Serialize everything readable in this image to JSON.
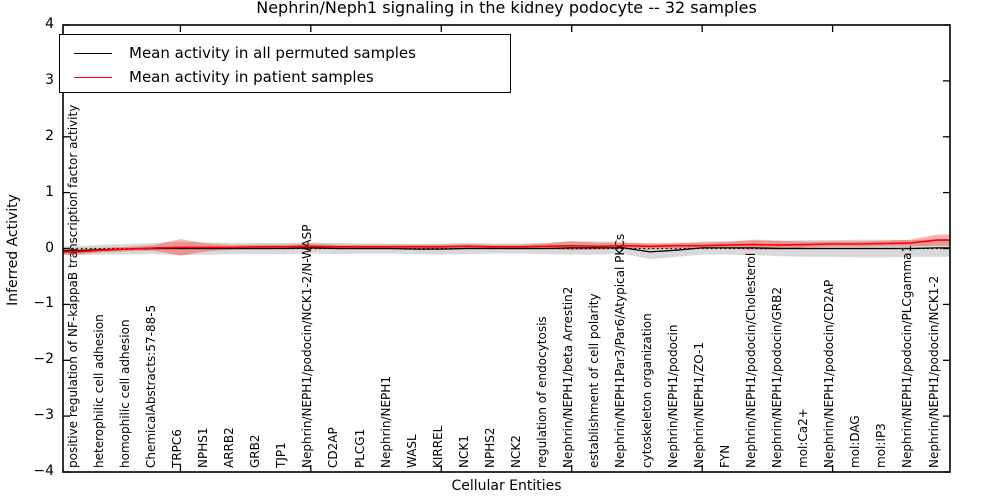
{
  "chart_data": {
    "type": "line",
    "title": "Nephrin/Neph1 signaling in the kidney podocyte -- 32 samples",
    "xlabel": "Cellular Entities",
    "ylabel": "Inferred Activity",
    "ylim": [
      -4,
      4
    ],
    "grid": false,
    "legend_position": "upper left",
    "zero_reference_line": {
      "y": 0,
      "style": "dotted",
      "color": "#000000"
    },
    "yticks": {
      "values": [
        4,
        3,
        2,
        1,
        0,
        -1,
        -2,
        -3,
        -4
      ],
      "labels": [
        "4",
        "3",
        "2",
        "1",
        "0",
        "−1",
        "−2",
        "−3",
        "−4"
      ]
    },
    "x_major_tick_indices": [
      4,
      9,
      14,
      19,
      24,
      29
    ],
    "categories": [
      "positive regulation of NF-kappaB transcription factor activity",
      "heterophilic cell adhesion",
      "homophilic cell adhesion",
      "ChemicalAbstracts:57-88-5",
      "TRPC6",
      "NPHS1",
      "ARRB2",
      "GRB2",
      "TJP1",
      "Nephrin/NEPH1/podocin/NCK1-2/N-WASP",
      "CD2AP",
      "PLCG1",
      "Nephrin/NEPH1",
      "WASL",
      "KIRREL",
      "NCK1",
      "NPHS2",
      "NCK2",
      "regulation of endocytosis",
      "Nephrin/NEPH1/beta Arrestin2",
      "establishment of cell polarity",
      "Nephrin/NEPH1Par3/Par6/Atypical PKCs",
      "cytoskeleton organization",
      "Nephrin/NEPH1/podocin",
      "Nephrin/NEPH1/ZO-1",
      "FYN",
      "Nephrin/NEPH1/podocin/Cholesterol",
      "Nephrin/NEPH1/podocin/GRB2",
      "mol:Ca2+",
      "Nephrin/NEPH1/podocin/CD2AP",
      "mol:DAG",
      "mol:IP3",
      "Nephrin/NEPH1/podocin/PLCgamma1",
      "Nephrin/NEPH1/podocin/NCK1-2"
    ],
    "series": [
      {
        "name": "Mean activity in all permuted samples",
        "color": "#000000",
        "line_width": 1.3,
        "band_color": "rgba(0,0,0,0.15)",
        "band_name": "permuted-band",
        "values": [
          -0.04,
          -0.02,
          -0.01,
          0,
          0,
          0,
          0,
          0,
          0,
          0.01,
          0,
          0,
          0,
          -0.01,
          -0.01,
          0,
          0,
          0,
          0,
          0.01,
          0.01,
          0.01,
          -0.06,
          -0.03,
          0.01,
          0.01,
          0.01,
          0,
          0,
          0,
          0,
          0,
          0,
          0.01
        ],
        "band_halfwidth": [
          0.08,
          0.09,
          0.09,
          0.1,
          0.12,
          0.11,
          0.1,
          0.1,
          0.1,
          0.1,
          0.1,
          0.09,
          0.09,
          0.09,
          0.1,
          0.1,
          0.09,
          0.09,
          0.1,
          0.12,
          0.12,
          0.11,
          0.13,
          0.12,
          0.12,
          0.12,
          0.13,
          0.14,
          0.15,
          0.15,
          0.16,
          0.16,
          0.15,
          0.16
        ]
      },
      {
        "name": "Mean activity in patient samples",
        "color": "#ff0000",
        "line_width": 1.6,
        "band_color": "rgba(255,0,0,0.30)",
        "band_name": "patient-band",
        "values": [
          -0.06,
          -0.03,
          -0.01,
          0.01,
          0.02,
          0.02,
          0.02,
          0.03,
          0.03,
          0.04,
          0.03,
          0.03,
          0.03,
          0.03,
          0.03,
          0.04,
          0.03,
          0.03,
          0.04,
          0.05,
          0.04,
          0.05,
          0.04,
          0.05,
          0.05,
          0.06,
          0.07,
          0.06,
          0.07,
          0.08,
          0.08,
          0.09,
          0.1,
          0.15
        ],
        "band_halfwidth": [
          0.05,
          0.04,
          0.04,
          0.05,
          0.15,
          0.07,
          0.04,
          0.04,
          0.04,
          0.05,
          0.04,
          0.04,
          0.04,
          0.04,
          0.04,
          0.04,
          0.04,
          0.04,
          0.05,
          0.08,
          0.06,
          0.05,
          0.06,
          0.05,
          0.05,
          0.06,
          0.09,
          0.08,
          0.05,
          0.05,
          0.05,
          0.05,
          0.06,
          0.1
        ]
      }
    ],
    "legend": [
      {
        "label": "Mean activity in all permuted samples",
        "color": "#000000"
      },
      {
        "label": "Mean activity in patient samples",
        "color": "#ff0000"
      }
    ]
  }
}
